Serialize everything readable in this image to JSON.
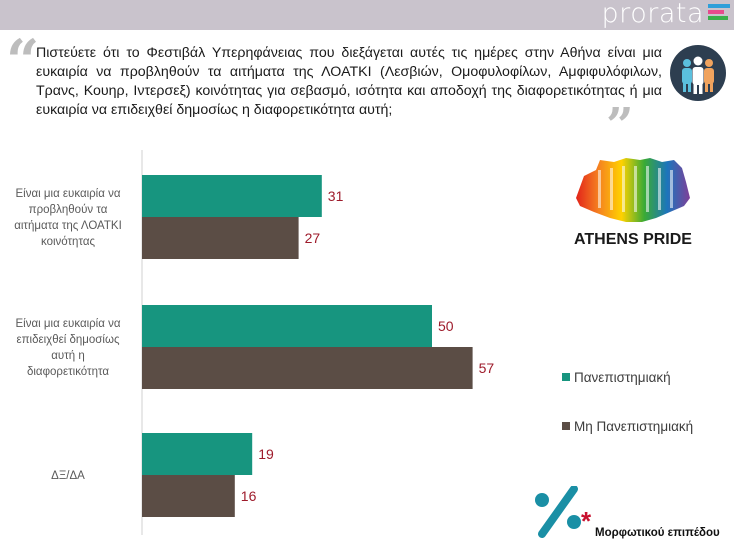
{
  "header": {
    "brand": "prorata",
    "brand_colors": [
      "#2f9fd9",
      "#e64b8c",
      "#39b04a"
    ]
  },
  "question": {
    "text": "Πιστεύετε ότι το Φεστιβάλ Υπερηφάνειας που διεξάγεται αυτές τις ημέρες στην Αθήνα είναι μια ευκαιρία να προβληθούν τα αιτήματα της ΛΟΑΤΚΙ (Λεσβιών, Ομοφυλοφίλων, Αμφιφυλόφιλων, Τρανς, Κουηρ, Ιντερσεξ) κοινότητας για σεβασμό, ισότητα και αποδοχή της διαφορετικότητας ή μια ευκαιρία να επιδειχθεί δημοσίως η διαφορετικότητα αυτή;"
  },
  "logo": {
    "text": "ATHENS PRIDE"
  },
  "chart_data": {
    "type": "bar",
    "orientation": "horizontal",
    "categories": [
      [
        "Είναι μια ευκαιρία να",
        "προβληθούν τα",
        "αιτήματα της ΛΟΑΤΚΙ",
        "κοινότητας"
      ],
      [
        "Είναι μια ευκαιρία να",
        "επιδειχθεί δημοσίως",
        "αυτή η",
        "διαφορετικότητα"
      ],
      [
        "ΔΞ/ΔΑ"
      ]
    ],
    "series": [
      {
        "name": "Πανεπιστημιακή",
        "color": "#17957f",
        "values": [
          31,
          50,
          19
        ]
      },
      {
        "name": "Μη Πανεπιστημιακή",
        "color": "#5b4d45",
        "values": [
          27,
          57,
          16
        ]
      }
    ],
    "label_color": "#9e1b2b",
    "xlim": [
      0,
      70
    ],
    "legend_position": "right"
  },
  "footer": {
    "subtitle": "Μορφωτικού επιπέδου",
    "accent": "#c8102e",
    "teal": "#1a8fa5"
  }
}
